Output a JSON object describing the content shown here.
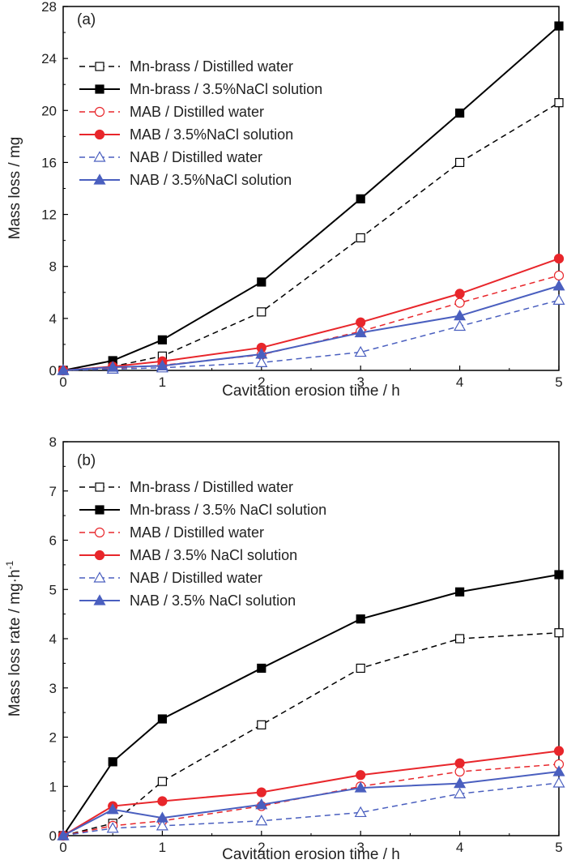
{
  "chart_data": [
    {
      "id": "a",
      "type": "line",
      "panel_label": "(a)",
      "xlabel": "Cavitation erosion time / h",
      "ylabel": "Mass loss / mg",
      "xlim": [
        0,
        5
      ],
      "ylim": [
        0,
        28
      ],
      "xticks": [
        0,
        1,
        2,
        3,
        4,
        5
      ],
      "yticks": [
        0,
        4,
        8,
        12,
        16,
        20,
        24,
        28
      ],
      "x": [
        0,
        0.5,
        1,
        2,
        3,
        4,
        5
      ],
      "legend_position": "top-left",
      "series": [
        {
          "name": "Mn-brass / Distilled water",
          "color": "#000000",
          "dashed": true,
          "marker": "square-open",
          "values": [
            0,
            0.3,
            1.1,
            4.5,
            10.2,
            16.0,
            20.6
          ]
        },
        {
          "name": "Mn-brass / 3.5%NaCl solution",
          "color": "#000000",
          "dashed": false,
          "marker": "square-filled",
          "values": [
            0,
            0.75,
            2.35,
            6.8,
            13.2,
            19.8,
            26.5
          ]
        },
        {
          "name": "MAB / Distilled water",
          "color": "#e8262b",
          "dashed": true,
          "marker": "circle-open",
          "values": [
            0,
            0.15,
            0.4,
            1.2,
            3.0,
            5.2,
            7.3
          ]
        },
        {
          "name": "MAB / 3.5%NaCl solution",
          "color": "#e8262b",
          "dashed": false,
          "marker": "circle-filled",
          "values": [
            0,
            0.3,
            0.7,
            1.75,
            3.7,
            5.9,
            8.6
          ]
        },
        {
          "name": "NAB / Distilled water",
          "color": "#4a5fbf",
          "dashed": true,
          "marker": "triangle-open",
          "values": [
            0,
            0.1,
            0.2,
            0.6,
            1.4,
            3.4,
            5.4
          ]
        },
        {
          "name": "NAB / 3.5%NaCl solution",
          "color": "#4a5fbf",
          "dashed": false,
          "marker": "triangle-filled",
          "values": [
            0,
            0.25,
            0.35,
            1.25,
            2.9,
            4.2,
            6.5
          ]
        }
      ]
    },
    {
      "id": "b",
      "type": "line",
      "panel_label": "(b)",
      "xlabel": "Cavitation erosion time / h",
      "ylabel": "Mass loss rate / mg·h",
      "ylabel_sup": "-1",
      "xlim": [
        0,
        5
      ],
      "ylim": [
        0,
        8
      ],
      "xticks": [
        0,
        1,
        2,
        3,
        4,
        5
      ],
      "yticks": [
        0,
        1,
        2,
        3,
        4,
        5,
        6,
        7,
        8
      ],
      "x": [
        0,
        0.5,
        1,
        2,
        3,
        4,
        5
      ],
      "legend_position": "top-left",
      "series": [
        {
          "name": "Mn-brass / Distilled water",
          "color": "#000000",
          "dashed": true,
          "marker": "square-open",
          "values": [
            0,
            0.25,
            1.1,
            2.25,
            3.4,
            4.0,
            4.12
          ]
        },
        {
          "name": "Mn-brass / 3.5% NaCl solution",
          "color": "#000000",
          "dashed": false,
          "marker": "square-filled",
          "values": [
            0,
            1.5,
            2.37,
            3.4,
            4.4,
            4.95,
            5.3
          ]
        },
        {
          "name": "MAB / Distilled water",
          "color": "#e8262b",
          "dashed": true,
          "marker": "circle-open",
          "values": [
            0,
            0.2,
            0.3,
            0.6,
            1.0,
            1.3,
            1.45
          ]
        },
        {
          "name": "MAB / 3.5% NaCl solution",
          "color": "#e8262b",
          "dashed": false,
          "marker": "circle-filled",
          "values": [
            0,
            0.6,
            0.7,
            0.88,
            1.23,
            1.47,
            1.72
          ]
        },
        {
          "name": "NAB / Distilled water",
          "color": "#4a5fbf",
          "dashed": true,
          "marker": "triangle-open",
          "values": [
            0,
            0.15,
            0.2,
            0.3,
            0.47,
            0.85,
            1.07
          ]
        },
        {
          "name": "NAB / 3.5% NaCl solution",
          "color": "#4a5fbf",
          "dashed": false,
          "marker": "triangle-filled",
          "values": [
            0,
            0.53,
            0.36,
            0.63,
            0.97,
            1.06,
            1.3
          ]
        }
      ]
    }
  ]
}
